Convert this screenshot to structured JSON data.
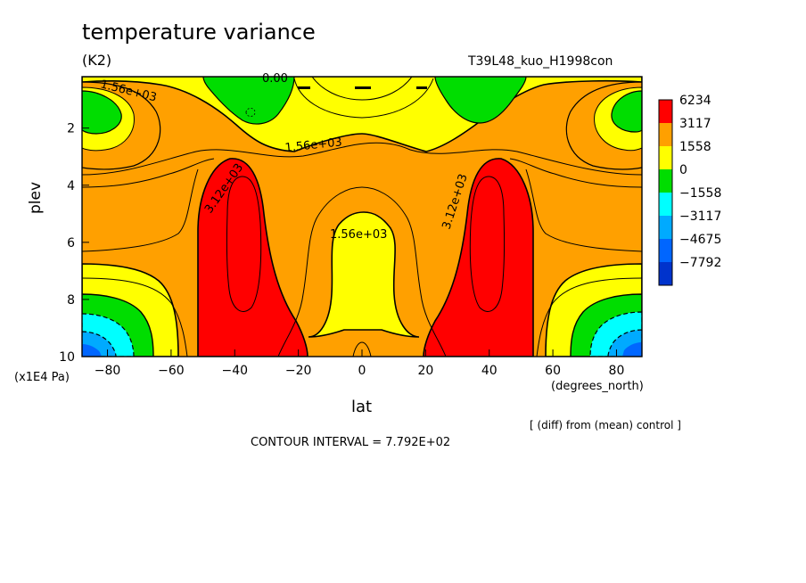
{
  "chart_data": {
    "type": "heatmap",
    "title": "temperature variance",
    "units": "(K2)",
    "run_id": "T39L48_kuo_H1998con",
    "xlabel": "lat",
    "x_unit": "(degrees_north)",
    "ylabel": "plev",
    "y_unit": "(x1E4 Pa)",
    "xlim": [
      -88,
      88
    ],
    "ylim": [
      10,
      0.2
    ],
    "x_ticks": [
      "-80",
      "-60",
      "-40",
      "-20",
      "0",
      "20",
      "40",
      "60",
      "80"
    ],
    "y_ticks": [
      "2",
      "4",
      "6",
      "8",
      "10"
    ],
    "colorbar_levels": [
      "6234",
      "3117",
      "1558",
      "0",
      "−1558",
      "−3117",
      "−4675",
      "−7792"
    ],
    "colorbar_colors": [
      "#ff0000",
      "#ffa000",
      "#ffff00",
      "#00dd00",
      "#00ffff",
      "#00aaff",
      "#0066ff",
      "#0033cc"
    ],
    "contour_labels": [
      "0.00",
      "1.56e+03",
      "1.56e+03",
      "3.12e+03",
      "3.12e+03",
      "1.56e+03"
    ],
    "note": "[ (diff) from (mean) control ]",
    "contour_interval": "CONTOUR INTERVAL = 7.792E+02"
  }
}
